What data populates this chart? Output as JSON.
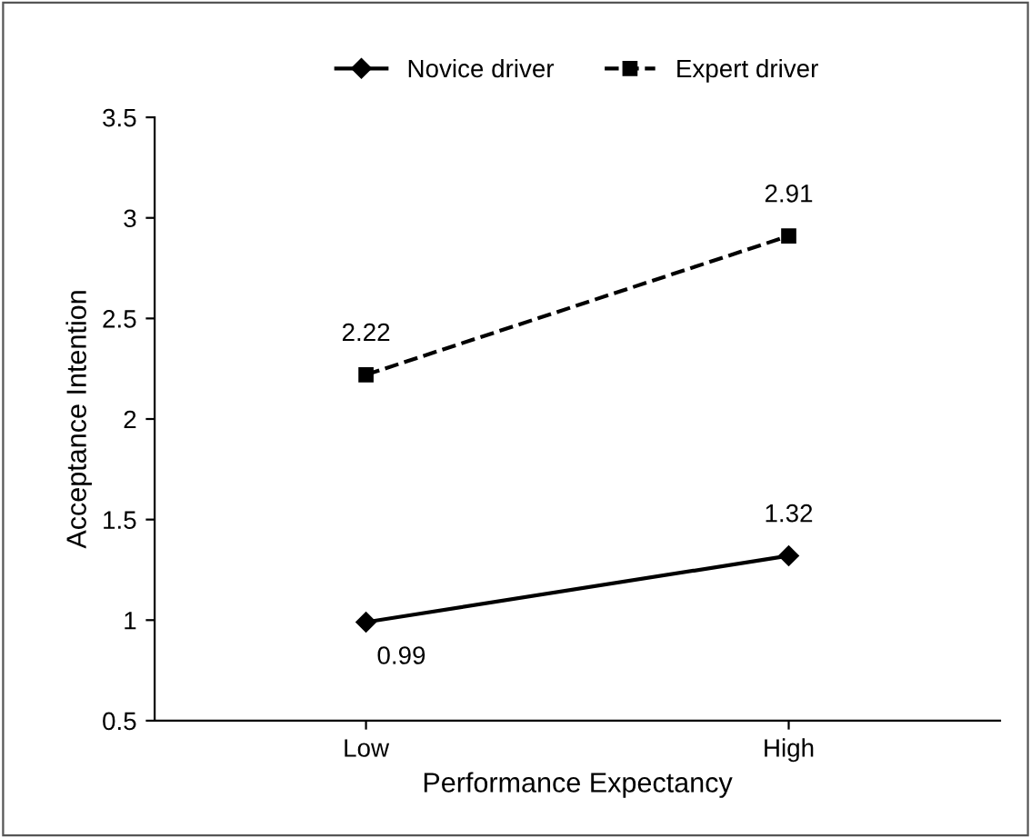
{
  "chart_data": {
    "type": "line",
    "xlabel": "Performance Expectancy",
    "ylabel": "Acceptance Intention",
    "categories": [
      "Low",
      "High"
    ],
    "series": [
      {
        "name": "Novice driver",
        "color": "#000000",
        "values": [
          0.99,
          1.32
        ],
        "marker": "diamond",
        "line_style": "solid"
      },
      {
        "name": "Expert driver",
        "color": "#000000",
        "values": [
          2.22,
          2.91
        ],
        "marker": "square",
        "line_style": "dashed"
      }
    ],
    "ylim": [
      0.5,
      3.5
    ],
    "yticks": [
      0.5,
      1,
      1.5,
      2,
      2.5,
      3,
      3.5
    ],
    "grid": false,
    "legend": "top",
    "data_labels": true
  }
}
